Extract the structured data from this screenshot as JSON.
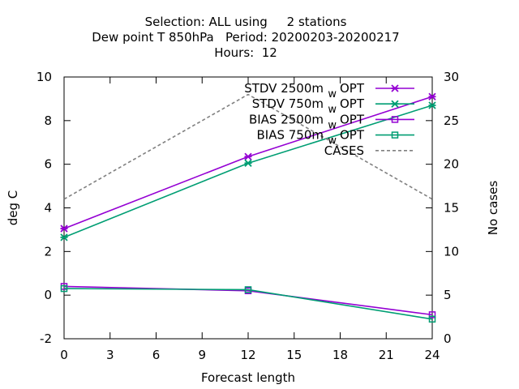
{
  "chart_data": {
    "type": "line",
    "title": [
      "Selection: ALL using     2 stations",
      "Dew point T 850hPa   Period: 20200203-20200217",
      "Hours:  12"
    ],
    "xlabel": "Forecast length",
    "ylabel": "deg C",
    "y2label": "No cases",
    "xlim": [
      0,
      24
    ],
    "ylim": [
      -2,
      10
    ],
    "y2lim": [
      0,
      30
    ],
    "x_ticks": [
      "0",
      "3",
      "6",
      "9",
      "12",
      "15",
      "18",
      "21",
      "24"
    ],
    "y_ticks": [
      "-2",
      "0",
      "2",
      "4",
      "6",
      "8",
      "10"
    ],
    "y2_ticks": [
      "0",
      "5",
      "10",
      "15",
      "20",
      "25",
      "30"
    ],
    "grid": false,
    "legend_position": "top-right",
    "x": [
      0,
      12,
      24
    ],
    "series": [
      {
        "name": "STDV 2500m",
        "name_sub": "w",
        "name_suffix": "OPT",
        "values": [
          3.05,
          6.35,
          9.1
        ],
        "color": "#9400d3",
        "marker": "x-star",
        "axis": "y"
      },
      {
        "name": "STDV 750m",
        "name_sub": "w",
        "name_suffix": "OPT",
        "values": [
          2.65,
          6.05,
          8.7
        ],
        "color": "#009e73",
        "marker": "x-star",
        "axis": "y"
      },
      {
        "name": "BIAS 2500m",
        "name_sub": "w",
        "name_suffix": "OPT",
        "values": [
          0.4,
          0.2,
          -0.9
        ],
        "color": "#9400d3",
        "marker": "square",
        "axis": "y"
      },
      {
        "name": "BIAS 750m",
        "name_sub": "w",
        "name_suffix": "OPT",
        "values": [
          0.3,
          0.25,
          -1.1
        ],
        "color": "#009e73",
        "marker": "square",
        "axis": "y"
      },
      {
        "name": "CASES",
        "name_sub": "",
        "name_suffix": "",
        "values": [
          16,
          28,
          16
        ],
        "color": "#808080",
        "marker": "none",
        "dashed": true,
        "axis": "y2"
      }
    ]
  }
}
